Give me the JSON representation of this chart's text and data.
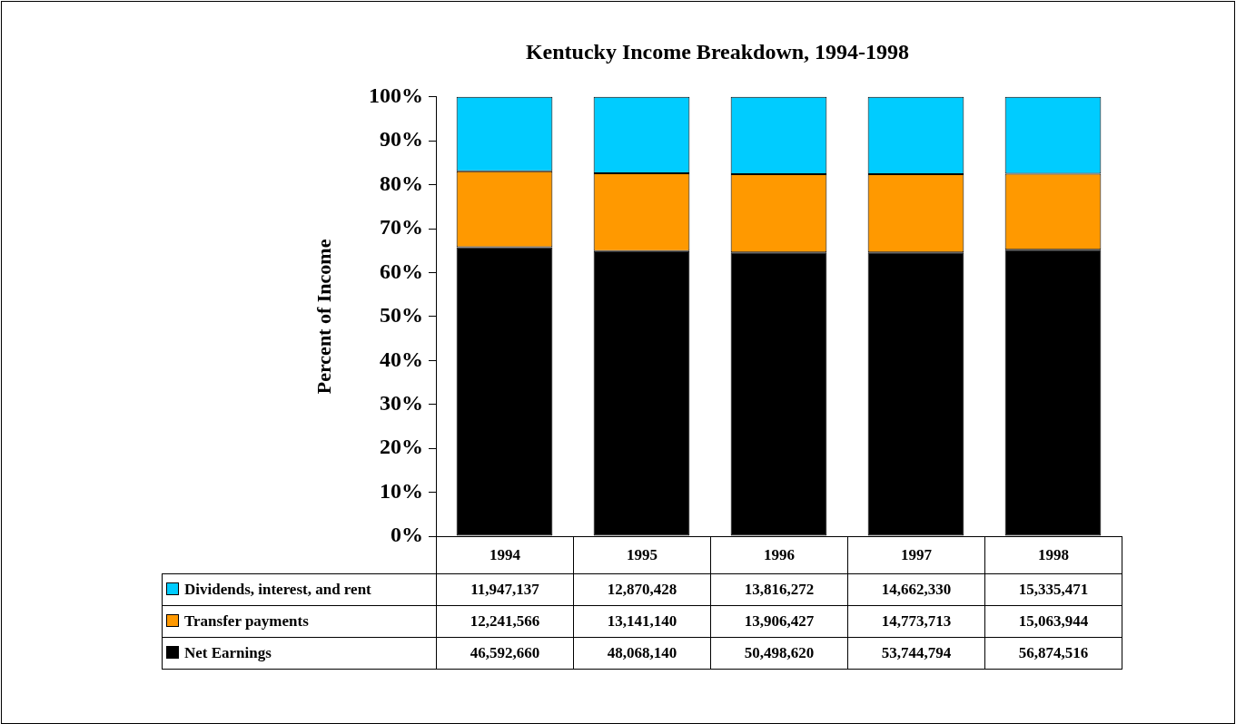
{
  "chart_data": {
    "type": "bar",
    "title": "Kentucky Income Breakdown, 1994-1998",
    "ylabel": "Percent of Income",
    "stacked": true,
    "legend": "bottom",
    "categories": [
      "1994",
      "1995",
      "1996",
      "1997",
      "1998"
    ],
    "ylim": [
      0,
      100
    ],
    "yticks": [
      {
        "value": 0,
        "label": "0%"
      },
      {
        "value": 10,
        "label": "10%"
      },
      {
        "value": 20,
        "label": "20%"
      },
      {
        "value": 30,
        "label": "30%"
      },
      {
        "value": 40,
        "label": "40%"
      },
      {
        "value": 50,
        "label": "50%"
      },
      {
        "value": 60,
        "label": "60%"
      },
      {
        "value": 70,
        "label": "70%"
      },
      {
        "value": 80,
        "label": "80%"
      },
      {
        "value": 90,
        "label": "90%"
      },
      {
        "value": 100,
        "label": "100%"
      }
    ],
    "series": [
      {
        "name": "Net Earnings",
        "color": "#000000",
        "values": [
          65.8,
          64.9,
          64.6,
          64.6,
          65.2
        ]
      },
      {
        "name": "Transfer payments",
        "color": "#ff9900",
        "values": [
          17.3,
          17.7,
          17.8,
          17.8,
          17.3
        ]
      },
      {
        "name": "Dividends, interest, and rent",
        "color": "#00ccff",
        "values": [
          16.9,
          17.4,
          17.6,
          17.6,
          17.5
        ]
      }
    ],
    "annotations": [
      "11,947,137",
      "12,870,428",
      "13,816,272",
      "14,662,330",
      "15,335,471",
      "12,241,566",
      "13,141,140",
      "13,906,427",
      "14,773,713",
      "15,063,944",
      "46,592,660",
      "48,068,140",
      "50,498,620",
      "53,744,794",
      "56,874,516"
    ]
  }
}
